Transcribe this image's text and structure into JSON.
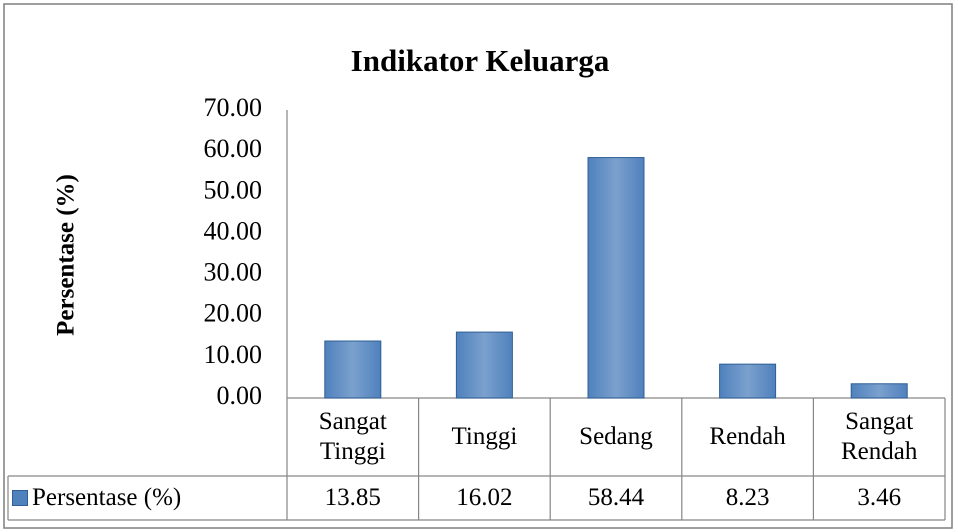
{
  "chart_data": {
    "type": "bar",
    "title": "Indikator Keluarga",
    "y_label": "Persentase (%)",
    "categories": [
      "Sangat Tinggi",
      "Tinggi",
      "Sedang",
      "Rendah",
      "Sangat Rendah"
    ],
    "series": [
      {
        "name": "Persentase (%)",
        "color": "#4f81bd",
        "values": [
          13.85,
          16.02,
          58.44,
          8.23,
          3.46
        ]
      }
    ],
    "ylim": [
      0,
      70
    ],
    "yticks": [
      {
        "value": 0,
        "label": "0.00"
      },
      {
        "value": 10,
        "label": "10.00"
      },
      {
        "value": 20,
        "label": "20.00"
      },
      {
        "value": 30,
        "label": "30.00"
      },
      {
        "value": 40,
        "label": "40.00"
      },
      {
        "value": 50,
        "label": "50.00"
      },
      {
        "value": 60,
        "label": "60.00"
      },
      {
        "value": 70,
        "label": "70.00"
      }
    ],
    "grid": false,
    "data_table": true
  }
}
